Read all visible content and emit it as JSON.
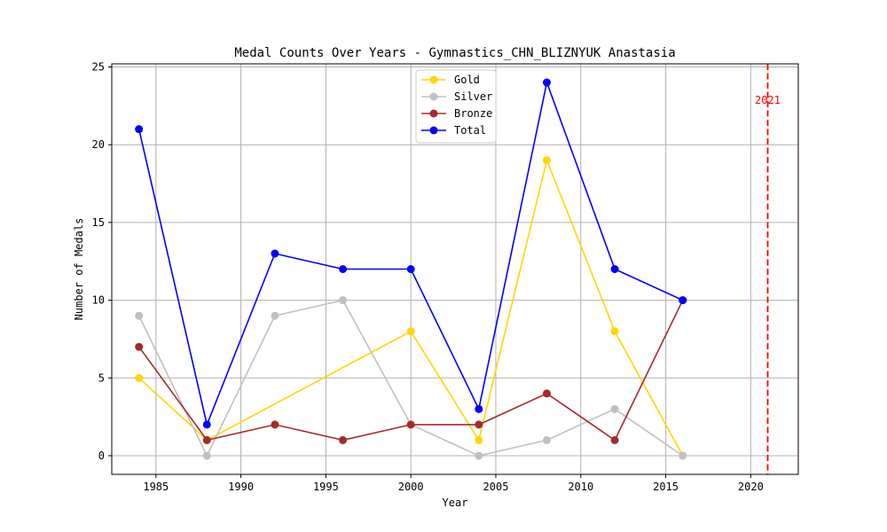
{
  "chart_data": {
    "type": "line",
    "title": "Medal Counts Over Years - Gymnastics_CHN_BLIZNYUK Anastasia",
    "xlabel": "Year",
    "ylabel": "Number of Medals",
    "x": [
      1984,
      1988,
      1992,
      1996,
      2000,
      2004,
      2008,
      2012,
      2016
    ],
    "xlim": [
      1982.4,
      2022.8
    ],
    "ylim": [
      -1.2,
      25.2
    ],
    "xticks": [
      1985,
      1990,
      1995,
      2000,
      2005,
      2010,
      2015,
      2020
    ],
    "yticks": [
      0,
      5,
      10,
      15,
      20,
      25
    ],
    "grid": true,
    "legend_position": "top-center",
    "series": [
      {
        "name": "Gold",
        "color": "#ffd700",
        "x": [
          1984,
          1988,
          2000,
          2004,
          2008,
          2012,
          2016
        ],
        "values": [
          5,
          1,
          8,
          1,
          19,
          8,
          0
        ]
      },
      {
        "name": "Silver",
        "color": "#c0c0c0",
        "x": [
          1984,
          1988,
          1992,
          1996,
          2000,
          2004,
          2008,
          2012,
          2016
        ],
        "values": [
          9,
          0,
          9,
          10,
          2,
          0,
          1,
          3,
          0
        ]
      },
      {
        "name": "Bronze",
        "color": "#a52a2a",
        "x": [
          1984,
          1988,
          1992,
          1996,
          2000,
          2004,
          2008,
          2012,
          2016
        ],
        "values": [
          7,
          1,
          2,
          1,
          2,
          2,
          4,
          1,
          10
        ]
      },
      {
        "name": "Total",
        "color": "#0000ff",
        "x": [
          1984,
          1988,
          1992,
          1996,
          2000,
          2004,
          2008,
          2012,
          2016
        ],
        "values": [
          21,
          2,
          13,
          12,
          12,
          3,
          24,
          12,
          10
        ]
      }
    ],
    "annotations": [
      {
        "type": "vline",
        "x": 2021,
        "label": "2021",
        "color": "#ff0000",
        "style": "dashed"
      }
    ]
  }
}
